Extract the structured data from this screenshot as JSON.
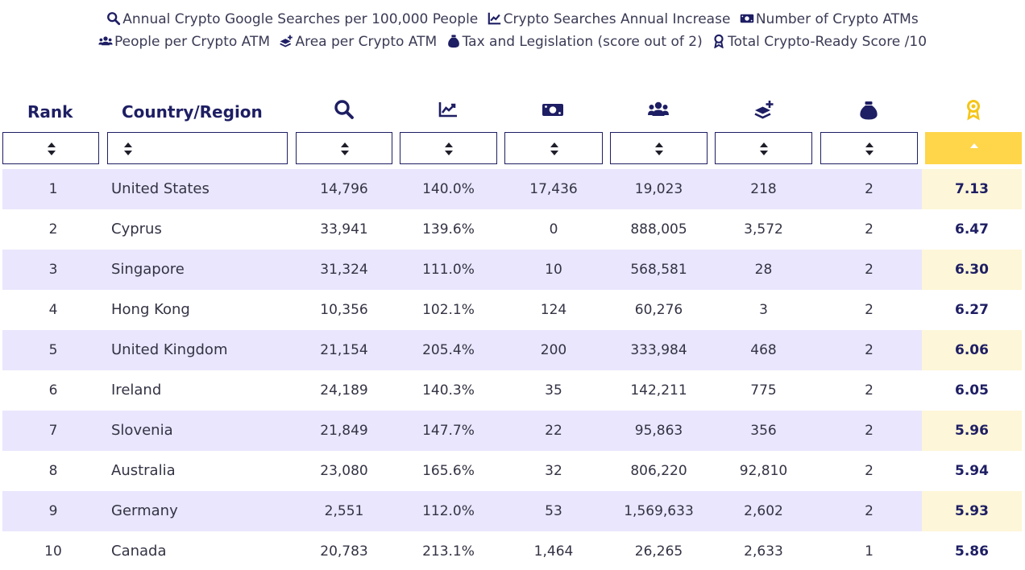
{
  "legend": {
    "line1": [
      {
        "icon": "search-icon",
        "label": "Annual Crypto Google Searches per 100,000 People"
      },
      {
        "icon": "chart-line-icon",
        "label": "Crypto Searches Annual Increase"
      },
      {
        "icon": "money-bill-icon",
        "label": "Number of Crypto ATMs"
      }
    ],
    "line2": [
      {
        "icon": "users-icon",
        "label": "People per Crypto ATM"
      },
      {
        "icon": "layer-plus-icon",
        "label": "Area per Crypto ATM"
      },
      {
        "icon": "money-bag-icon",
        "label": "Tax and Legislation (score out of 2)"
      },
      {
        "icon": "award-icon",
        "label": "Total Crypto-Ready Score /10"
      }
    ]
  },
  "table": {
    "headers": {
      "rank": "Rank",
      "country": "Country/Region"
    },
    "sorted_column": "score",
    "sort_direction": "ascending-indicator",
    "colors": {
      "navy": "#1e1e64",
      "row_shade": "#e9e6fd",
      "score_highlight": "#ffd54a",
      "score_shade": "#fdf6d8"
    },
    "rows": [
      {
        "rank": "1",
        "country": "United States",
        "searches": "14,796",
        "increase": "140.0%",
        "atms": "17,436",
        "people": "19,023",
        "area": "218",
        "tax": "2",
        "score": "7.13"
      },
      {
        "rank": "2",
        "country": "Cyprus",
        "searches": "33,941",
        "increase": "139.6%",
        "atms": "0",
        "people": "888,005",
        "area": "3,572",
        "tax": "2",
        "score": "6.47"
      },
      {
        "rank": "3",
        "country": "Singapore",
        "searches": "31,324",
        "increase": "111.0%",
        "atms": "10",
        "people": "568,581",
        "area": "28",
        "tax": "2",
        "score": "6.30"
      },
      {
        "rank": "4",
        "country": "Hong Kong",
        "searches": "10,356",
        "increase": "102.1%",
        "atms": "124",
        "people": "60,276",
        "area": "3",
        "tax": "2",
        "score": "6.27"
      },
      {
        "rank": "5",
        "country": "United Kingdom",
        "searches": "21,154",
        "increase": "205.4%",
        "atms": "200",
        "people": "333,984",
        "area": "468",
        "tax": "2",
        "score": "6.06"
      },
      {
        "rank": "6",
        "country": "Ireland",
        "searches": "24,189",
        "increase": "140.3%",
        "atms": "35",
        "people": "142,211",
        "area": "775",
        "tax": "2",
        "score": "6.05"
      },
      {
        "rank": "7",
        "country": "Slovenia",
        "searches": "21,849",
        "increase": "147.7%",
        "atms": "22",
        "people": "95,863",
        "area": "356",
        "tax": "2",
        "score": "5.96"
      },
      {
        "rank": "8",
        "country": "Australia",
        "searches": "23,080",
        "increase": "165.6%",
        "atms": "32",
        "people": "806,220",
        "area": "92,810",
        "tax": "2",
        "score": "5.94"
      },
      {
        "rank": "9",
        "country": "Germany",
        "searches": "2,551",
        "increase": "112.0%",
        "atms": "53",
        "people": "1,569,633",
        "area": "2,602",
        "tax": "2",
        "score": "5.93"
      },
      {
        "rank": "10",
        "country": "Canada",
        "searches": "20,783",
        "increase": "213.1%",
        "atms": "1,464",
        "people": "26,265",
        "area": "2,633",
        "tax": "1",
        "score": "5.86"
      }
    ]
  }
}
